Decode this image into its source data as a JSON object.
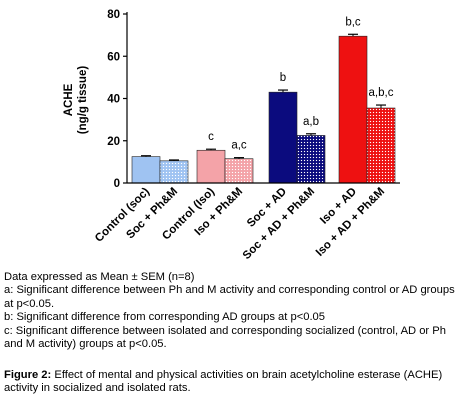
{
  "chart_data": {
    "type": "bar",
    "ylabel": "ACHE",
    "ylabel_unit": "(ng/g tissue)",
    "ylim": [
      0,
      80
    ],
    "yticks": [
      "0",
      "20",
      "40",
      "60",
      "80"
    ],
    "categories": [
      "Control (soc)",
      "Soc + Ph&M",
      "Control (Iso)",
      "Iso + Ph&M",
      "Soc + AD",
      "Soc + AD + Ph&M",
      "Iso + AD",
      "Iso + AD + Ph&M"
    ],
    "values": [
      12.5,
      10.5,
      15.5,
      11.5,
      43,
      22.5,
      69.5,
      35.5
    ],
    "errors": [
      0.4,
      0.4,
      0.5,
      0.5,
      1.0,
      0.8,
      0.9,
      1.4
    ],
    "annotations": [
      "",
      "",
      "c",
      "a,c",
      "b",
      "a,b",
      "b,c",
      "a,b,c"
    ],
    "bar_colors": [
      "#9fc3f2",
      "#9fc3f2",
      "#f4a3a8",
      "#f4a3a8",
      "#0b0b7e",
      "#0b0b7e",
      "#ee1111",
      "#ee1111"
    ],
    "bar_patterns": [
      "solid",
      "dotted",
      "solid",
      "dotted",
      "solid",
      "dotted",
      "solid",
      "dotted"
    ]
  },
  "notes": {
    "line1": "Data expressed as Mean ± SEM (n=8)",
    "line2": "a: Significant difference between Ph and M activity and corresponding control or AD groups at p<0.05.",
    "line3": "b: Significant difference from corresponding AD groups at p<0.05",
    "line4": "c: Significant difference between isolated and corresponding socialized (control, AD or Ph and M activity) groups at p<0.05."
  },
  "caption": {
    "label": "Figure 2:",
    "text": "Effect of mental and physical activities on brain acetylcholine esterase (ACHE) activity in socialized and isolated rats."
  }
}
